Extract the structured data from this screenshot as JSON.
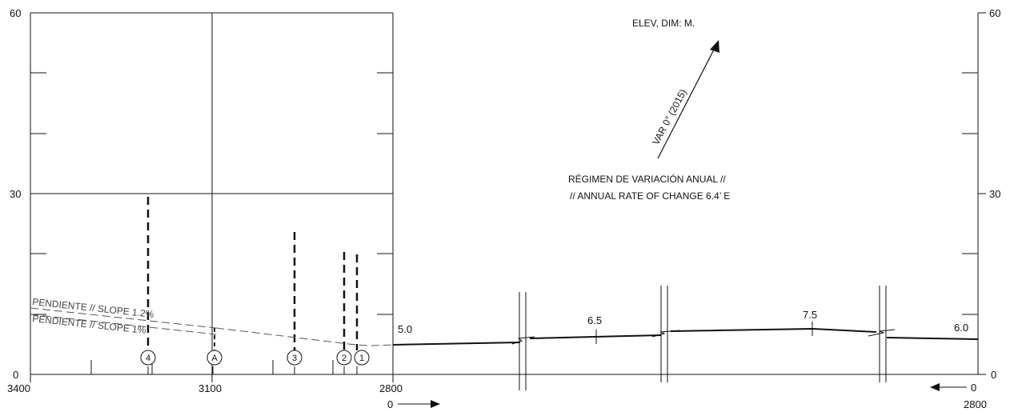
{
  "left_axis": {
    "labels": [
      "60",
      "30",
      "0"
    ]
  },
  "right_axis": {
    "labels": [
      "60",
      "30",
      "0"
    ]
  },
  "x_axis_labels": {
    "left": "3400",
    "mid": "3100",
    "zero": "2800"
  },
  "bottom_labels": {
    "zero_arrow": "0",
    "right_value": "0",
    "right_bottom": "2800"
  },
  "north_arrow": {
    "elev_dim": "ELEV, DIM: M.",
    "variation": "VAR 0° (2015)",
    "annual_rate_line1": "RÉGIMEN DE VARIACIÓN ANUAL //",
    "annual_rate_line2": "// ANNUAL RATE OF CHANGE 6.4’ E"
  },
  "slope_labels": {
    "s1": "PENDIENTE // SLOPE 1.2%",
    "s2": "PENDIENTE // SLOPE 1%"
  },
  "markers": [
    "4",
    "A",
    "3",
    "2",
    "1"
  ],
  "profile_values": {
    "v1": "5.0",
    "v2": "6.5",
    "v3": "7.5",
    "v4": "6.0"
  }
}
